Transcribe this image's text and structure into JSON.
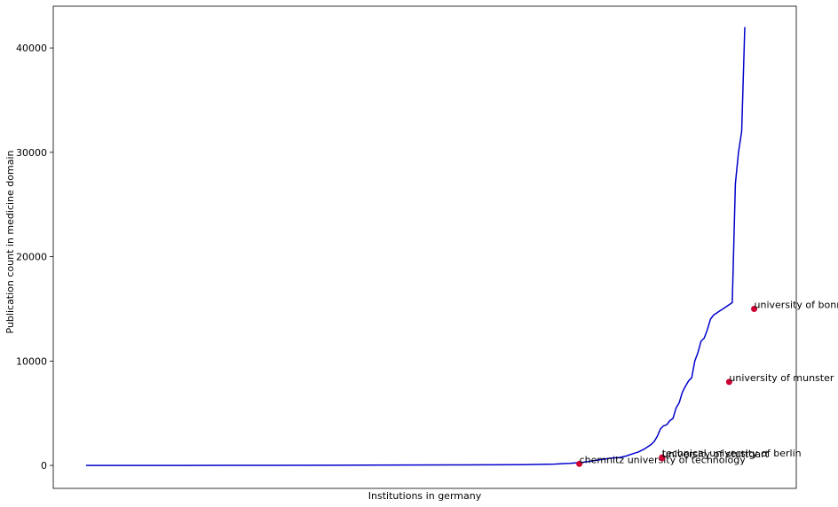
{
  "chart_data": {
    "type": "line",
    "title": "",
    "xlabel": "Institutions in germany",
    "ylabel": "Publication count in medicine domain",
    "ylim": [
      -2200,
      44000
    ],
    "xlim": [
      -21,
      455
    ],
    "grid": false,
    "legend": "none",
    "yticks": [
      0,
      10000,
      20000,
      30000,
      40000
    ],
    "ytick_labels": [
      "0",
      "10000",
      "20000",
      "30000",
      "40000"
    ],
    "xticks": [],
    "colors": {
      "line": "#0000cc",
      "marker": "#cc0033"
    },
    "series": [
      {
        "x": [
          0,
          60,
          120,
          180,
          240,
          280,
          300,
          310,
          318,
          324,
          330,
          336,
          342,
          346,
          350,
          354,
          358,
          362,
          364,
          366,
          368,
          370,
          372,
          374,
          376,
          378,
          380,
          382,
          384,
          386,
          388,
          390,
          392,
          394,
          396,
          398,
          400,
          402,
          404,
          406,
          408,
          410,
          412,
          414,
          416,
          418,
          420,
          422,
          424,
          426,
          428,
          430
        ],
        "y": [
          0,
          0,
          10,
          25,
          50,
          80,
          130,
          200,
          300,
          420,
          560,
          700,
          760,
          900,
          1100,
          1300,
          1600,
          2000,
          2300,
          2800,
          3500,
          3800,
          3900,
          4300,
          4500,
          5500,
          6000,
          7000,
          7600,
          8100,
          8400,
          10000,
          10800,
          11900,
          12200,
          13000,
          14000,
          14400,
          14600,
          14800,
          15000,
          15200,
          15400,
          15600,
          27000,
          30000,
          32000,
          42000,
          null,
          null,
          null,
          null
        ]
      }
    ],
    "annotations": [
      {
        "label": "chemnitz university of technology",
        "x": 316,
        "y": 150
      },
      {
        "label": "technical university of berlin",
        "x": 369,
        "y": 760
      },
      {
        "label": "university of stuttgart",
        "x": 369,
        "y": 700
      },
      {
        "label": "university of munster",
        "x": 412,
        "y": 8000
      },
      {
        "label": "university of bonn",
        "x": 428,
        "y": 15000
      }
    ]
  }
}
